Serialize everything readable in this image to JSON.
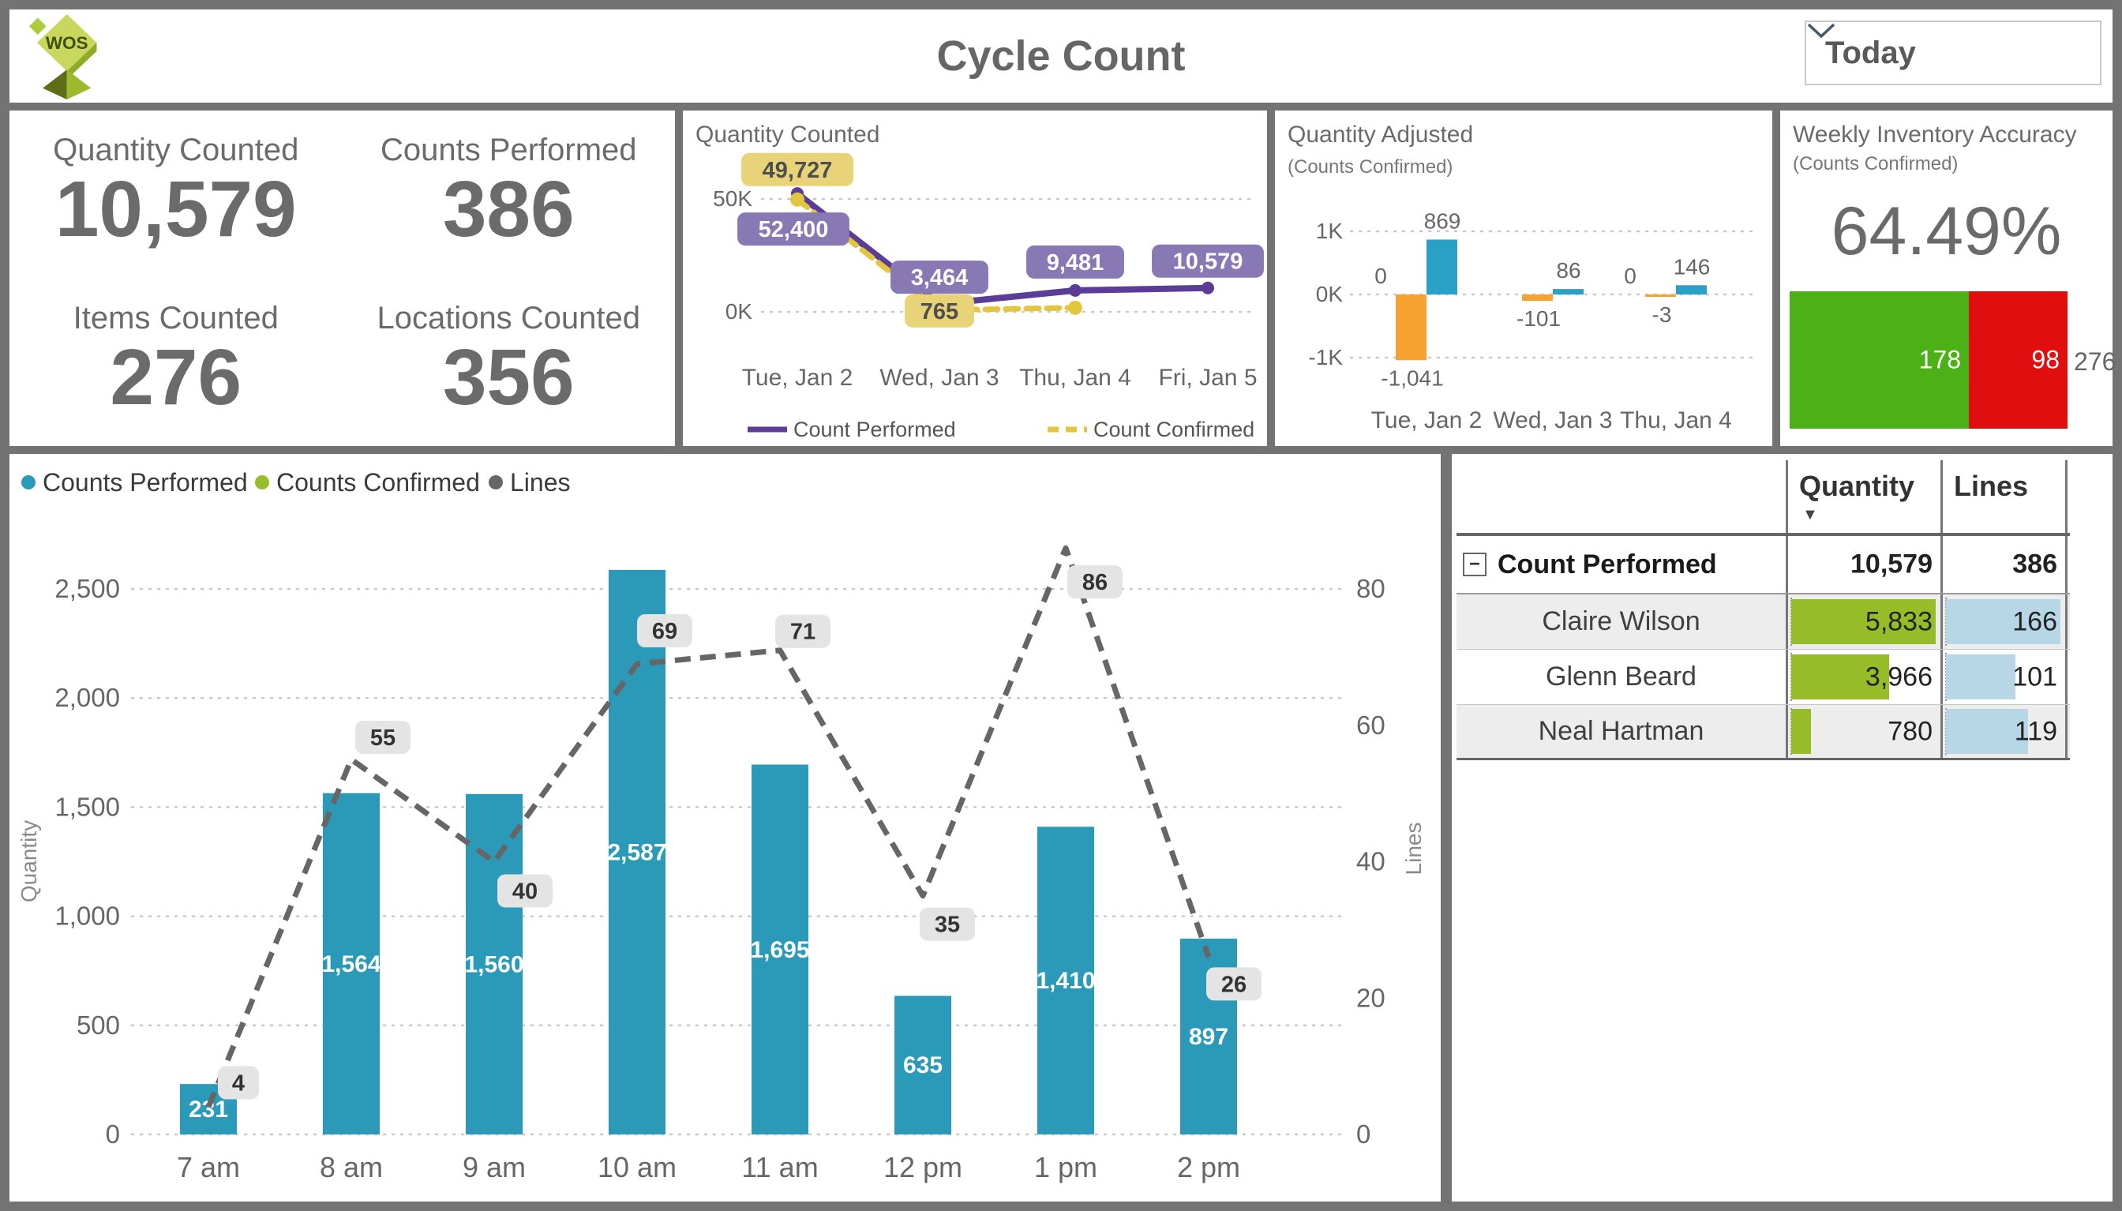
{
  "header": {
    "logo_text": "WOS",
    "title": "Cycle Count",
    "filter_label": "Today"
  },
  "kpis": [
    {
      "label": "Quantity Counted",
      "value": "10,579"
    },
    {
      "label": "Counts Performed",
      "value": "386"
    },
    {
      "label": "Items Counted",
      "value": "276"
    },
    {
      "label": "Locations Counted",
      "value": "356"
    }
  ],
  "chart_data": [
    {
      "id": "quantity_counted_trend",
      "type": "line",
      "title": "Quantity Counted",
      "categories": [
        "Tue, Jan 2",
        "Wed, Jan 3",
        "Thu, Jan 4",
        "Fri, Jan 5"
      ],
      "series": [
        {
          "name": "Count Performed",
          "style": "solid",
          "color": "#5B3C96",
          "label_bg": "#8878B4",
          "label_color": "#FFFFFF",
          "values": [
            52400,
            3464,
            9481,
            10579
          ],
          "labels": [
            "52,400",
            "3,464",
            "9,481",
            "10,579"
          ]
        },
        {
          "name": "Count Confirmed",
          "style": "dashed",
          "color": "#E3C53E",
          "label_bg": "#E8D379",
          "label_color": "#4E4E4E",
          "values": [
            49727,
            765,
            1800,
            null
          ],
          "labels": [
            "49,727",
            "765",
            null,
            null
          ]
        }
      ],
      "y_ticks": [
        "50K",
        "0K"
      ],
      "ylim": [
        0,
        50000
      ],
      "grid": true,
      "legend_position": "bottom"
    },
    {
      "id": "quantity_adjusted",
      "type": "bar",
      "title": "Quantity Adjusted",
      "subtitle": "(Counts Confirmed)",
      "categories": [
        "Tue, Jan 2",
        "Wed, Jan 3",
        "Thu, Jan 4"
      ],
      "series": [
        {
          "name": "zero",
          "color": "transparent",
          "values": [
            0,
            null,
            0
          ],
          "labels": [
            "0",
            null,
            "0"
          ]
        },
        {
          "name": "negative adjustments",
          "color": "#F5A230",
          "values": [
            -1041,
            -101,
            -3
          ],
          "labels": [
            "-1,041",
            "-101",
            "-3"
          ]
        },
        {
          "name": "positive adjustments",
          "color": "#2BA0C6",
          "values": [
            869,
            86,
            146
          ],
          "labels": [
            "869",
            "86",
            "146"
          ]
        }
      ],
      "y_ticks": [
        "1K",
        "0K",
        "-1K"
      ],
      "ylim": [
        -1250,
        1250
      ],
      "grid": true
    },
    {
      "id": "weekly_inventory_accuracy",
      "type": "bar",
      "title": "Weekly Inventory Accuracy",
      "subtitle": "(Counts Confirmed)",
      "headline_value": "64.49%",
      "segments": [
        {
          "label": "178",
          "value": 178,
          "color": "#4CB117"
        },
        {
          "label": "98",
          "value": 98,
          "color": "#E00E0E"
        }
      ],
      "total_label": "276"
    },
    {
      "id": "hourly_counts",
      "type": "bar+line",
      "categories": [
        "7 am",
        "8 am",
        "9 am",
        "10 am",
        "11 am",
        "12 pm",
        "1 pm",
        "2 pm"
      ],
      "legend": [
        {
          "name": "Counts Performed",
          "color": "#2A9AB8"
        },
        {
          "name": "Counts Confirmed",
          "color": "#97BE28"
        },
        {
          "name": "Lines",
          "color": "#666666"
        }
      ],
      "bar_series": {
        "name": "Counts Performed",
        "color": "#2A9AB8",
        "values": [
          231,
          1564,
          1560,
          2587,
          1695,
          635,
          1410,
          897
        ],
        "labels": [
          "231",
          "1,564",
          "1,560",
          "2,587",
          "1,695",
          "635",
          "1,410",
          "897"
        ]
      },
      "line_series": {
        "name": "Lines",
        "color": "#666666",
        "values": [
          4,
          55,
          40,
          69,
          71,
          35,
          86,
          26
        ],
        "labels": [
          "4",
          "55",
          "40",
          "69",
          "71",
          "35",
          "86",
          "26"
        ]
      },
      "left_axis": {
        "title": "Quantity",
        "ticks": [
          "0",
          "500",
          "1,000",
          "1,500",
          "2,000",
          "2,500"
        ],
        "max": 2500
      },
      "right_axis": {
        "title": "Lines",
        "ticks": [
          "0",
          "20",
          "40",
          "60",
          "80"
        ],
        "max": 80
      },
      "grid": true
    }
  ],
  "table": {
    "columns": [
      "Quantity",
      "Lines"
    ],
    "sorted_by": "Quantity",
    "sort_direction": "desc",
    "rows": [
      {
        "name": "Count Performed",
        "level": "group",
        "expanded": true,
        "quantity": "10,579",
        "lines": "386"
      },
      {
        "name": "Claire Wilson",
        "level": "detail",
        "quantity": "5,833",
        "lines": "166",
        "quantity_bar": 1.0,
        "lines_bar": 1.0
      },
      {
        "name": "Glenn Beard",
        "level": "detail",
        "quantity": "3,966",
        "lines": "101",
        "quantity_bar": 0.68,
        "lines_bar": 0.61
      },
      {
        "name": "Neal Hartman",
        "level": "detail",
        "quantity": "780",
        "lines": "119",
        "quantity_bar": 0.134,
        "lines_bar": 0.72
      }
    ],
    "bar_colors": {
      "quantity": "#96BD27",
      "lines": "#B7D7E6"
    }
  }
}
